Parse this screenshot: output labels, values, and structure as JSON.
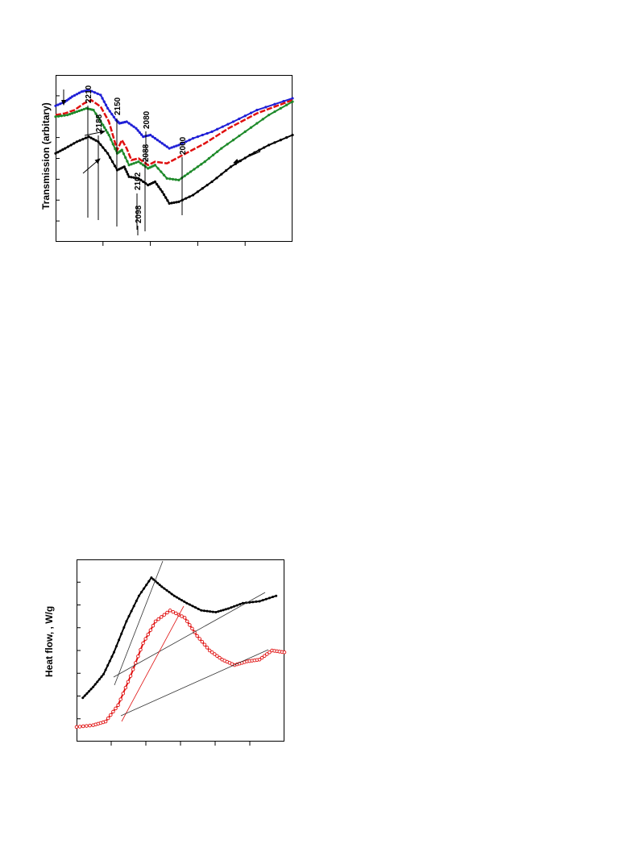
{
  "chart_data": [
    {
      "type": "line",
      "ylabel": "Transmission (arbitary)",
      "xlabel": "",
      "title": "",
      "peak_labels": [
        "2210",
        "2188",
        "2150",
        "2088",
        "2080",
        "2102",
        "2098",
        "2000"
      ],
      "series": [
        {
          "color": "#1f1fd6",
          "marker": "circle",
          "values": [
            [
              0,
              0.815
            ],
            [
              0.04,
              0.84
            ],
            [
              0.07,
              0.87
            ],
            [
              0.11,
              0.9
            ],
            [
              0.14,
              0.91
            ],
            [
              0.19,
              0.88
            ],
            [
              0.22,
              0.8
            ],
            [
              0.255,
              0.73
            ],
            [
              0.27,
              0.71
            ],
            [
              0.3,
              0.72
            ],
            [
              0.34,
              0.68
            ],
            [
              0.37,
              0.63
            ],
            [
              0.4,
              0.64
            ],
            [
              0.44,
              0.6
            ],
            [
              0.48,
              0.56
            ],
            [
              0.52,
              0.58
            ],
            [
              0.58,
              0.62
            ],
            [
              0.66,
              0.66
            ],
            [
              0.75,
              0.72
            ],
            [
              0.85,
              0.79
            ],
            [
              1,
              0.86
            ]
          ]
        },
        {
          "color": "#e01010",
          "marker": "dash",
          "values": [
            [
              0,
              0.76
            ],
            [
              0.04,
              0.77
            ],
            [
              0.08,
              0.79
            ],
            [
              0.12,
              0.83
            ],
            [
              0.15,
              0.85
            ],
            [
              0.19,
              0.81
            ],
            [
              0.225,
              0.72
            ],
            [
              0.26,
              0.55
            ],
            [
              0.28,
              0.61
            ],
            [
              0.3,
              0.56
            ],
            [
              0.32,
              0.49
            ],
            [
              0.35,
              0.5
            ],
            [
              0.39,
              0.46
            ],
            [
              0.42,
              0.48
            ],
            [
              0.47,
              0.47
            ],
            [
              0.55,
              0.53
            ],
            [
              0.63,
              0.59
            ],
            [
              0.73,
              0.68
            ],
            [
              0.85,
              0.77
            ],
            [
              1,
              0.85
            ]
          ]
        },
        {
          "color": "#1e8a2a",
          "marker": "circle",
          "values": [
            [
              0,
              0.75
            ],
            [
              0.05,
              0.76
            ],
            [
              0.09,
              0.78
            ],
            [
              0.13,
              0.8
            ],
            [
              0.16,
              0.79
            ],
            [
              0.2,
              0.7
            ],
            [
              0.225,
              0.64
            ],
            [
              0.26,
              0.53
            ],
            [
              0.28,
              0.55
            ],
            [
              0.31,
              0.46
            ],
            [
              0.35,
              0.48
            ],
            [
              0.39,
              0.44
            ],
            [
              0.42,
              0.46
            ],
            [
              0.47,
              0.38
            ],
            [
              0.52,
              0.37
            ],
            [
              0.57,
              0.42
            ],
            [
              0.63,
              0.48
            ],
            [
              0.7,
              0.56
            ],
            [
              0.8,
              0.66
            ],
            [
              0.9,
              0.76
            ],
            [
              1,
              0.84
            ]
          ]
        },
        {
          "color": "#000000",
          "marker": "circle",
          "values": [
            [
              0,
              0.53
            ],
            [
              0.04,
              0.56
            ],
            [
              0.09,
              0.6
            ],
            [
              0.14,
              0.63
            ],
            [
              0.18,
              0.6
            ],
            [
              0.22,
              0.53
            ],
            [
              0.26,
              0.43
            ],
            [
              0.29,
              0.45
            ],
            [
              0.31,
              0.39
            ],
            [
              0.35,
              0.38
            ],
            [
              0.39,
              0.34
            ],
            [
              0.42,
              0.36
            ],
            [
              0.45,
              0.3
            ],
            [
              0.48,
              0.23
            ],
            [
              0.52,
              0.24
            ],
            [
              0.58,
              0.28
            ],
            [
              0.66,
              0.36
            ],
            [
              0.74,
              0.45
            ],
            [
              0.82,
              0.52
            ],
            [
              0.9,
              0.58
            ],
            [
              1,
              0.64
            ]
          ]
        }
      ]
    },
    {
      "type": "line",
      "ylabel": "Heat flow,     , W/g",
      "xlabel": "",
      "title": "",
      "series": [
        {
          "color": "#000000",
          "marker": "circle",
          "values": [
            [
              0.03,
              0.24
            ],
            [
              0.08,
              0.3
            ],
            [
              0.13,
              0.37
            ],
            [
              0.18,
              0.49
            ],
            [
              0.24,
              0.66
            ],
            [
              0.3,
              0.8
            ],
            [
              0.36,
              0.9
            ],
            [
              0.41,
              0.85
            ],
            [
              0.47,
              0.8
            ],
            [
              0.53,
              0.76
            ],
            [
              0.6,
              0.72
            ],
            [
              0.67,
              0.71
            ],
            [
              0.73,
              0.73
            ],
            [
              0.8,
              0.76
            ],
            [
              0.88,
              0.77
            ],
            [
              0.96,
              0.8
            ]
          ]
        },
        {
          "color": "#e01010",
          "marker": "circle-open",
          "values": [
            [
              0,
              0.08
            ],
            [
              0.08,
              0.09
            ],
            [
              0.14,
              0.11
            ],
            [
              0.2,
              0.2
            ],
            [
              0.26,
              0.36
            ],
            [
              0.32,
              0.54
            ],
            [
              0.38,
              0.66
            ],
            [
              0.45,
              0.72
            ],
            [
              0.52,
              0.68
            ],
            [
              0.58,
              0.58
            ],
            [
              0.64,
              0.5
            ],
            [
              0.7,
              0.45
            ],
            [
              0.76,
              0.42
            ],
            [
              0.82,
              0.44
            ],
            [
              0.88,
              0.45
            ],
            [
              0.94,
              0.5
            ],
            [
              1,
              0.49
            ]
          ]
        }
      ]
    }
  ]
}
